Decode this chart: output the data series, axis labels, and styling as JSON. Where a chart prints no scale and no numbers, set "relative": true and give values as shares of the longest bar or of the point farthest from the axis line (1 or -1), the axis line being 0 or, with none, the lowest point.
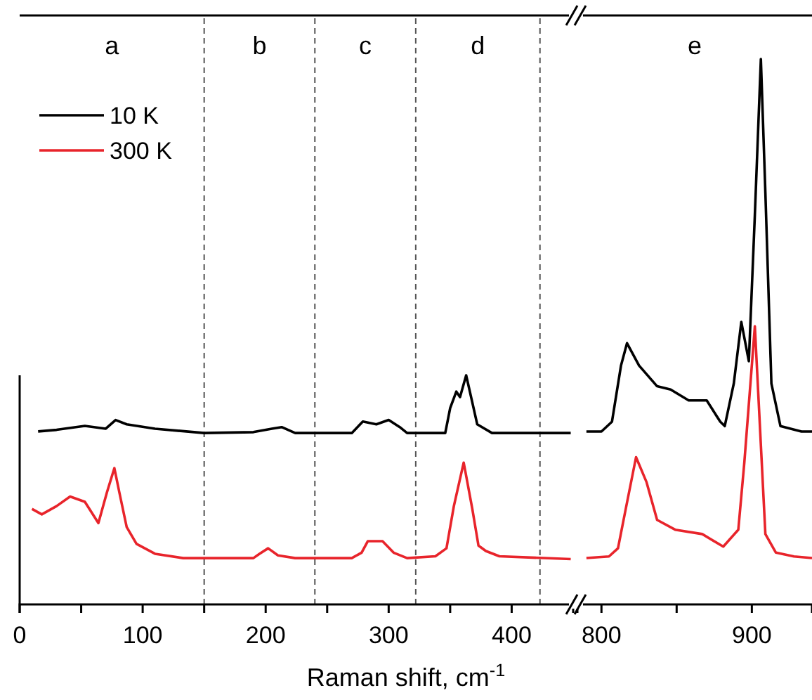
{
  "chart_data": [
    {
      "type": "line",
      "relative": true,
      "xlabel": "Raman shift, cm$^{-1}$",
      "xlim": [
        0,
        450
      ],
      "xticks": [
        0,
        {
          "value": 50,
          "label": null
        },
        100,
        {
          "value": 150,
          "label": null
        },
        200,
        {
          "value": 250,
          "label": null
        },
        300,
        {
          "value": 350,
          "label": null
        },
        400
      ],
      "tick_labels": "x",
      "legend": "top left",
      "grid": false,
      "ref_lines": [
        {
          "axis": "x",
          "value": 150,
          "color": "#555555",
          "line_style": "dashed"
        },
        {
          "axis": "x",
          "value": 240,
          "color": "#555555",
          "line_style": "dashed"
        },
        {
          "axis": "x",
          "value": 322,
          "color": "#555555",
          "line_style": "dashed"
        },
        {
          "axis": "x",
          "value": 423,
          "color": "#555555",
          "line_style": "dashed"
        }
      ],
      "annotations": [
        "a",
        "b",
        "c",
        "d"
      ],
      "series": [
        {
          "name": "10 K",
          "color": "#000000",
          "x": [
            15,
            30,
            53,
            70,
            78,
            87,
            110,
            150,
            190,
            205,
            213,
            224,
            270,
            279,
            290,
            300,
            309,
            315,
            330,
            346,
            350,
            355,
            358,
            363,
            367,
            372,
            384,
            420,
            448
          ],
          "values": [
            0.755,
            0.762,
            0.779,
            0.767,
            0.805,
            0.786,
            0.767,
            0.748,
            0.752,
            0.767,
            0.774,
            0.748,
            0.748,
            0.798,
            0.786,
            0.805,
            0.774,
            0.748,
            0.748,
            0.748,
            0.857,
            0.929,
            0.905,
            1,
            0.905,
            0.786,
            0.748,
            0.748,
            0.748
          ]
        },
        {
          "name": "300 K",
          "color": "#e8242b",
          "x": [
            10,
            18,
            30,
            41,
            53,
            64,
            71,
            77,
            81,
            87,
            95,
            110,
            133,
            190,
            195,
            202,
            210,
            224,
            270,
            278,
            283,
            295,
            304,
            315,
            338,
            347,
            353,
            361,
            368,
            373,
            379,
            390,
            448
          ],
          "values": [
            0.417,
            0.393,
            0.429,
            0.471,
            0.448,
            0.355,
            0.49,
            0.595,
            0.49,
            0.338,
            0.264,
            0.221,
            0.202,
            0.202,
            0.221,
            0.245,
            0.214,
            0.202,
            0.202,
            0.226,
            0.276,
            0.276,
            0.226,
            0.202,
            0.21,
            0.245,
            0.429,
            0.619,
            0.417,
            0.257,
            0.233,
            0.21,
            0.198
          ]
        }
      ]
    },
    {
      "type": "line",
      "relative": true,
      "xlim": [
        784,
        940
      ],
      "xticks": [
        800,
        {
          "value": 850,
          "label": null
        },
        900
      ],
      "tick_labels": "x",
      "grid": false,
      "annotations": [
        "e"
      ],
      "series": [
        {
          "color": "#000000",
          "x": [
            790,
            800,
            807,
            813,
            817,
            825,
            837,
            846,
            858,
            870,
            879,
            882,
            888,
            893,
            898,
            902,
            906,
            909,
            913,
            919,
            933,
            940
          ],
          "values": [
            0.317,
            0.317,
            0.335,
            0.438,
            0.479,
            0.438,
            0.4,
            0.394,
            0.374,
            0.374,
            0.335,
            0.327,
            0.405,
            0.518,
            0.446,
            0.714,
            1,
            0.755,
            0.405,
            0.327,
            0.317,
            0.317
          ]
        },
        {
          "color": "#e8242b",
          "x": [
            790,
            805,
            811,
            816,
            823,
            830,
            837,
            849,
            867,
            881,
            891,
            895,
            902,
            909,
            916,
            928,
            940
          ],
          "values": [
            0.085,
            0.088,
            0.103,
            0.173,
            0.27,
            0.224,
            0.155,
            0.137,
            0.129,
            0.106,
            0.137,
            0.26,
            0.51,
            0.129,
            0.095,
            0.088,
            0.085
          ]
        }
      ]
    }
  ]
}
